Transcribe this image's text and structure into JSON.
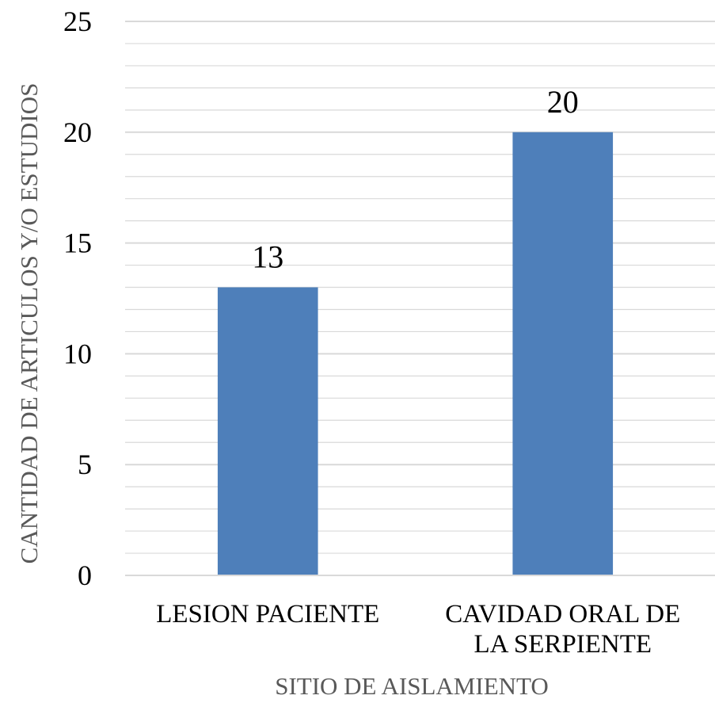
{
  "chart_data": {
    "type": "bar",
    "categories": [
      [
        "LESION PACIENTE"
      ],
      [
        "CAVIDAD ORAL DE",
        "LA SERPIENTE"
      ]
    ],
    "series": [
      {
        "values": [
          13,
          20
        ],
        "color": "#4E7FBA"
      }
    ],
    "data_labels": [
      "13",
      "20"
    ],
    "xlabel": "SITIO DE AISLAMIENTO",
    "ylabel": "CANTIDAD DE ARTICULOS Y/O ESTUDIOS",
    "ylim": [
      0,
      25
    ],
    "yticks": [
      0,
      5,
      10,
      15,
      20,
      25
    ],
    "minor_step": 1,
    "grid": true,
    "gridline_color": "#D9D9D9",
    "legend": "none"
  }
}
